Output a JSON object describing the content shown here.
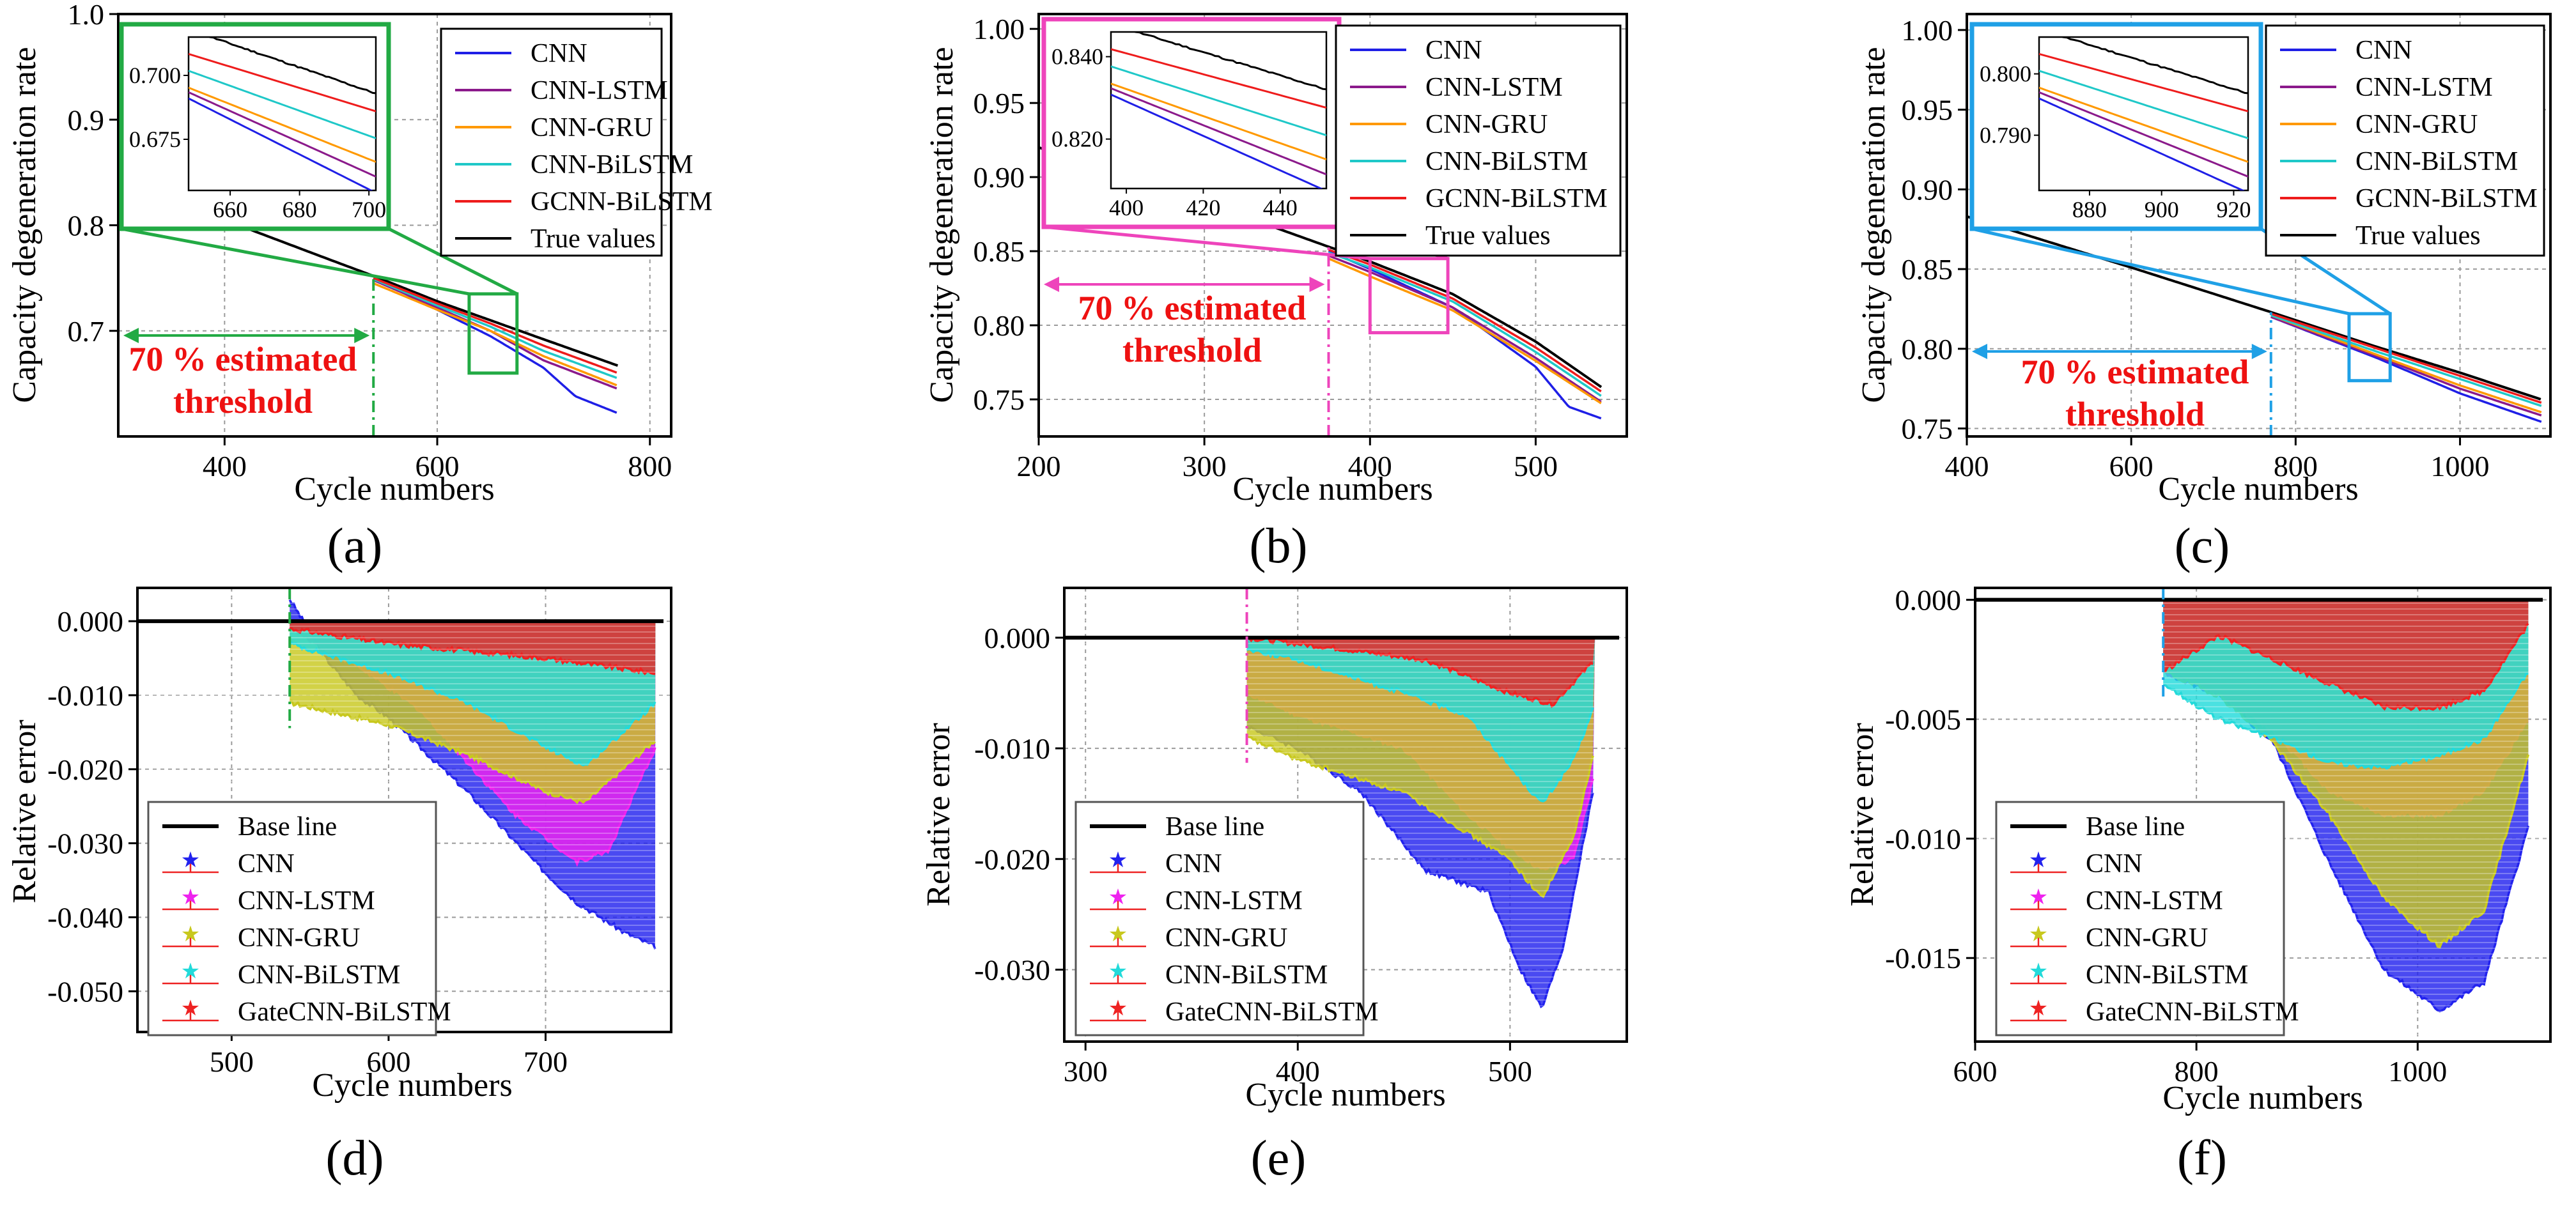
{
  "figure": {
    "panel_labels": [
      "(a)",
      "(b)",
      "(c)",
      "(d)",
      "(e)",
      "(f)"
    ]
  },
  "colors": {
    "CNN": "#1f1fe6",
    "CNN-LSTM": "#8b1a8b",
    "CNN-GRU": "#ff9900",
    "CNN-BiLSTM": "#1fc8c8",
    "GCNN-BiLSTM": "#ee1c1c",
    "True values": "#000000",
    "err_CNN": "#2222ee",
    "err_CNN-LSTM": "#ee22ee",
    "err_CNN-GRU": "#c8c81e",
    "err_CNN-BiLSTM": "#22dada",
    "err_GateCNN-BiLSTM": "#ee2222",
    "threshold_red": "#ee1111"
  },
  "chart_data": [
    {
      "id": "a",
      "type": "line",
      "label": "(a)",
      "xlabel": "Cycle numbers",
      "ylabel": "Capacity degeneration rate",
      "xlim": [
        300,
        820
      ],
      "ylim": [
        0.6,
        1.0
      ],
      "xticks": [
        400,
        600,
        800
      ],
      "yticks": [
        0.7,
        0.8,
        0.9,
        1.0
      ],
      "ytick_labels": [
        "0.7",
        "0.8",
        "0.9",
        "1.0"
      ],
      "threshold": {
        "x": 540,
        "text_line1": "70 % estimated",
        "text_line2": "threshold",
        "color": "#22aa44"
      },
      "zoom": {
        "x1": 630,
        "x2": 675,
        "y1": 0.66,
        "y2": 0.735,
        "color": "#22aa44",
        "inset_xlim": [
          648,
          702
        ],
        "inset_ylim": [
          0.655,
          0.715
        ],
        "inset_xticks": [
          660,
          680,
          700
        ],
        "inset_yticks": [
          0.675,
          0.7
        ],
        "inset_ytick_labels": [
          "0.675",
          "0.700"
        ]
      },
      "legend": [
        "CNN",
        "CNN-LSTM",
        "CNN-GRU",
        "CNN-BiLSTM",
        "GCNN-BiLSTM",
        "True values"
      ],
      "true_values": {
        "x": [
          300,
          400,
          500,
          540,
          600,
          700,
          770
        ],
        "y": [
          0.85,
          0.805,
          0.767,
          0.752,
          0.728,
          0.692,
          0.667
        ]
      },
      "series": [
        {
          "name": "CNN",
          "x": [
            540,
            600,
            650,
            700,
            730,
            770
          ],
          "y": [
            0.75,
            0.72,
            0.695,
            0.665,
            0.638,
            0.622
          ]
        },
        {
          "name": "CNN-LSTM",
          "x": [
            540,
            600,
            650,
            700,
            770
          ],
          "y": [
            0.748,
            0.722,
            0.7,
            0.672,
            0.645
          ]
        },
        {
          "name": "CNN-GRU",
          "x": [
            540,
            600,
            650,
            700,
            770
          ],
          "y": [
            0.745,
            0.72,
            0.7,
            0.676,
            0.648
          ]
        },
        {
          "name": "CNN-BiLSTM",
          "x": [
            540,
            600,
            650,
            700,
            770
          ],
          "y": [
            0.749,
            0.724,
            0.704,
            0.681,
            0.655
          ]
        },
        {
          "name": "GCNN-BiLSTM",
          "x": [
            540,
            600,
            650,
            700,
            770
          ],
          "y": [
            0.75,
            0.726,
            0.707,
            0.686,
            0.66
          ]
        }
      ]
    },
    {
      "id": "b",
      "type": "line",
      "label": "(b)",
      "xlabel": "Cycle numbers",
      "ylabel": "Capacity degeneration rate",
      "xlim": [
        200,
        555
      ],
      "ylim": [
        0.725,
        1.01
      ],
      "xticks": [
        200,
        300,
        400,
        500
      ],
      "yticks": [
        0.75,
        0.8,
        0.85,
        0.9,
        0.95,
        1.0
      ],
      "ytick_labels": [
        "0.75",
        "0.80",
        "0.85",
        "0.90",
        "0.95",
        "1.00"
      ],
      "threshold": {
        "x": 375,
        "text_line1": "70 % estimated",
        "text_line2": "threshold",
        "color": "#ee44bb"
      },
      "zoom": {
        "x1": 400,
        "x2": 447,
        "y1": 0.795,
        "y2": 0.845,
        "color": "#ee44bb",
        "inset_xlim": [
          396,
          452
        ],
        "inset_ylim": [
          0.808,
          0.846
        ],
        "inset_xticks": [
          400,
          420,
          440
        ],
        "inset_yticks": [
          0.82,
          0.84
        ],
        "inset_ytick_labels": [
          "0.820",
          "0.840"
        ]
      },
      "legend": [
        "CNN",
        "CNN-LSTM",
        "CNN-GRU",
        "CNN-BiLSTM",
        "GCNN-BiLSTM",
        "True values"
      ],
      "true_values": {
        "x": [
          200,
          300,
          375,
          400,
          450,
          500,
          540
        ],
        "y": [
          0.92,
          0.883,
          0.853,
          0.843,
          0.821,
          0.789,
          0.758
        ]
      },
      "series": [
        {
          "name": "CNN",
          "x": [
            375,
            400,
            450,
            500,
            520,
            540
          ],
          "y": [
            0.85,
            0.838,
            0.812,
            0.772,
            0.745,
            0.737
          ]
        },
        {
          "name": "CNN-LSTM",
          "x": [
            375,
            400,
            450,
            500,
            540
          ],
          "y": [
            0.847,
            0.836,
            0.812,
            0.778,
            0.748
          ]
        },
        {
          "name": "CNN-GRU",
          "x": [
            375,
            400,
            450,
            500,
            540
          ],
          "y": [
            0.845,
            0.833,
            0.81,
            0.776,
            0.747
          ]
        },
        {
          "name": "CNN-BiLSTM",
          "x": [
            375,
            400,
            450,
            500,
            540
          ],
          "y": [
            0.849,
            0.839,
            0.816,
            0.782,
            0.752
          ]
        },
        {
          "name": "GCNN-BiLSTM",
          "x": [
            375,
            400,
            450,
            500,
            540
          ],
          "y": [
            0.851,
            0.841,
            0.818,
            0.785,
            0.755
          ]
        }
      ]
    },
    {
      "id": "c",
      "type": "line",
      "label": "(c)",
      "xlabel": "Cycle numbers",
      "ylabel": "Capacity degeneration rate",
      "xlim": [
        400,
        1110
      ],
      "ylim": [
        0.745,
        1.01
      ],
      "xticks": [
        400,
        600,
        800,
        1000
      ],
      "yticks": [
        0.75,
        0.8,
        0.85,
        0.9,
        0.95,
        1.0
      ],
      "ytick_labels": [
        "0.75",
        "0.80",
        "0.85",
        "0.90",
        "0.95",
        "1.00"
      ],
      "threshold": {
        "x": 770,
        "text_line1": "70 % estimated",
        "text_line2": "threshold",
        "color": "#1fa0e6"
      },
      "zoom": {
        "x1": 865,
        "x2": 915,
        "y1": 0.78,
        "y2": 0.822,
        "color": "#1fa0e6",
        "inset_xlim": [
          866,
          924
        ],
        "inset_ylim": [
          0.781,
          0.806
        ],
        "inset_xticks": [
          880,
          900,
          920
        ],
        "inset_yticks": [
          0.79,
          0.8
        ],
        "inset_ytick_labels": [
          "0.790",
          "0.800"
        ]
      },
      "legend": [
        "CNN",
        "CNN-LSTM",
        "CNN-GRU",
        "CNN-BiLSTM",
        "GCNN-BiLSTM",
        "True values"
      ],
      "true_values": {
        "x": [
          400,
          600,
          770,
          900,
          1000,
          1100
        ],
        "y": [
          0.883,
          0.851,
          0.823,
          0.801,
          0.785,
          0.768
        ]
      },
      "series": [
        {
          "name": "CNN",
          "x": [
            770,
            900,
            1000,
            1100
          ],
          "y": [
            0.82,
            0.794,
            0.772,
            0.754
          ]
        },
        {
          "name": "CNN-LSTM",
          "x": [
            770,
            900,
            1000,
            1100
          ],
          "y": [
            0.82,
            0.795,
            0.775,
            0.758
          ]
        },
        {
          "name": "CNN-GRU",
          "x": [
            770,
            900,
            1000,
            1100
          ],
          "y": [
            0.821,
            0.796,
            0.777,
            0.76
          ]
        },
        {
          "name": "CNN-BiLSTM",
          "x": [
            770,
            900,
            1000,
            1100
          ],
          "y": [
            0.821,
            0.798,
            0.781,
            0.764
          ]
        },
        {
          "name": "GCNN-BiLSTM",
          "x": [
            770,
            900,
            1000,
            1100
          ],
          "y": [
            0.822,
            0.8,
            0.783,
            0.766
          ]
        }
      ]
    },
    {
      "id": "d",
      "type": "area",
      "label": "(d)",
      "xlabel": "Cycle numbers",
      "ylabel": "Relative error",
      "xlim": [
        440,
        780
      ],
      "ylim": [
        -0.0555,
        0.0045
      ],
      "xticks": [
        500,
        600,
        700
      ],
      "yticks": [
        0,
        -0.01,
        -0.02,
        -0.03,
        -0.04,
        -0.05
      ],
      "ytick_labels": [
        "0.000",
        "-0.010",
        "-0.020",
        "-0.030",
        "-0.040",
        "-0.050"
      ],
      "threshold": {
        "x": 537,
        "color": "#22aa44"
      },
      "legend": [
        "Base line",
        "CNN",
        "CNN-LSTM",
        "CNN-GRU",
        "CNN-BiLSTM",
        "GateCNN-BiLSTM"
      ],
      "series": [
        {
          "name": "CNN",
          "x": [
            537,
            560,
            580,
            600,
            650,
            700,
            720,
            750,
            770
          ],
          "y": [
            0.003,
            -0.005,
            -0.01,
            -0.013,
            -0.023,
            -0.034,
            -0.038,
            -0.042,
            -0.044
          ]
        },
        {
          "name": "CNN-LSTM",
          "x": [
            537,
            580,
            620,
            680,
            720,
            740,
            770
          ],
          "y": [
            -0.001,
            -0.006,
            -0.012,
            -0.026,
            -0.0325,
            -0.031,
            -0.017
          ]
        },
        {
          "name": "CNN-GRU",
          "x": [
            537,
            600,
            650,
            700,
            725,
            770
          ],
          "y": [
            -0.011,
            -0.014,
            -0.018,
            -0.023,
            -0.0245,
            -0.016
          ]
        },
        {
          "name": "CNN-BiLSTM",
          "x": [
            537,
            600,
            650,
            700,
            725,
            770
          ],
          "y": [
            -0.003,
            -0.007,
            -0.011,
            -0.017,
            -0.0195,
            -0.011
          ]
        },
        {
          "name": "GateCNN-BiLSTM",
          "x": [
            537,
            600,
            700,
            770
          ],
          "y": [
            -0.001,
            -0.003,
            -0.005,
            -0.007
          ]
        }
      ]
    },
    {
      "id": "e",
      "type": "area",
      "label": "(e)",
      "xlabel": "Cycle numbers",
      "ylabel": "Relative error",
      "xlim": [
        290,
        555
      ],
      "ylim": [
        -0.0365,
        0.0045
      ],
      "xticks": [
        300,
        400,
        500
      ],
      "yticks": [
        0,
        -0.01,
        -0.02,
        -0.03
      ],
      "ytick_labels": [
        "0.000",
        "-0.010",
        "-0.020",
        "-0.030"
      ],
      "threshold": {
        "x": 376,
        "color": "#ee44bb"
      },
      "legend": [
        "Base line",
        "CNN",
        "CNN-LSTM",
        "CNN-GRU",
        "CNN-BiLSTM",
        "GateCNN-BiLSTM"
      ],
      "series": [
        {
          "name": "CNN",
          "x": [
            376,
            400,
            430,
            460,
            490,
            505,
            515,
            525,
            540
          ],
          "y": [
            -0.008,
            -0.01,
            -0.014,
            -0.021,
            -0.023,
            -0.03,
            -0.0335,
            -0.028,
            -0.013
          ]
        },
        {
          "name": "CNN-LSTM",
          "x": [
            376,
            400,
            450,
            480,
            500,
            515,
            530,
            540
          ],
          "y": [
            -0.005,
            -0.007,
            -0.01,
            -0.016,
            -0.019,
            -0.021,
            -0.02,
            -0.012
          ]
        },
        {
          "name": "CNN-GRU",
          "x": [
            376,
            400,
            450,
            500,
            515,
            530,
            540
          ],
          "y": [
            -0.009,
            -0.011,
            -0.014,
            -0.02,
            -0.0235,
            -0.018,
            -0.01
          ]
        },
        {
          "name": "CNN-BiLSTM",
          "x": [
            376,
            400,
            450,
            480,
            515,
            530,
            540
          ],
          "y": [
            -0.001,
            -0.002,
            -0.005,
            -0.007,
            -0.015,
            -0.011,
            -0.006
          ]
        },
        {
          "name": "GateCNN-BiLSTM",
          "x": [
            376,
            420,
            460,
            500,
            520,
            540
          ],
          "y": [
            0.0,
            -0.001,
            -0.002,
            -0.005,
            -0.006,
            -0.002
          ]
        }
      ]
    },
    {
      "id": "f",
      "type": "area",
      "label": "(f)",
      "xlabel": "Cycle numbers",
      "ylabel": "Relative error",
      "xlim": [
        600,
        1120
      ],
      "ylim": [
        -0.0185,
        0.0005
      ],
      "xticks": [
        600,
        800,
        1000
      ],
      "yticks": [
        0,
        -0.005,
        -0.01,
        -0.015
      ],
      "ytick_labels": [
        "0.000",
        "-0.005",
        "-0.010",
        "-0.015"
      ],
      "threshold": {
        "x": 770,
        "color": "#1fa0e6"
      },
      "legend": [
        "Base line",
        "CNN",
        "CNN-LSTM",
        "CNN-GRU",
        "CNN-BiLSTM",
        "GateCNN-BiLSTM"
      ],
      "series": [
        {
          "name": "CNN",
          "x": [
            770,
            820,
            870,
            920,
            970,
            1020,
            1060,
            1100
          ],
          "y": [
            -0.003,
            -0.004,
            -0.006,
            -0.011,
            -0.0155,
            -0.0172,
            -0.016,
            -0.0095
          ]
        },
        {
          "name": "CNN-LSTM",
          "x": [
            770,
            820,
            870,
            920,
            970,
            1020,
            1060,
            1100
          ],
          "y": [
            -0.003,
            -0.004,
            -0.0055,
            -0.008,
            -0.009,
            -0.009,
            -0.008,
            -0.005
          ]
        },
        {
          "name": "CNN-GRU",
          "x": [
            770,
            820,
            870,
            920,
            970,
            1020,
            1060,
            1100
          ],
          "y": [
            -0.003,
            -0.004,
            -0.006,
            -0.009,
            -0.0125,
            -0.0145,
            -0.013,
            -0.0065
          ]
        },
        {
          "name": "CNN-BiLSTM",
          "x": [
            770,
            820,
            870,
            920,
            970,
            1020,
            1060,
            1100
          ],
          "y": [
            -0.0035,
            -0.005,
            -0.0058,
            -0.0068,
            -0.007,
            -0.0065,
            -0.0058,
            -0.003
          ]
        },
        {
          "name": "GateCNN-BiLSTM",
          "x": [
            770,
            820,
            870,
            920,
            970,
            1020,
            1060,
            1100
          ],
          "y": [
            -0.003,
            -0.0015,
            -0.0025,
            -0.0035,
            -0.0045,
            -0.0045,
            -0.0038,
            -0.001
          ]
        }
      ]
    }
  ]
}
